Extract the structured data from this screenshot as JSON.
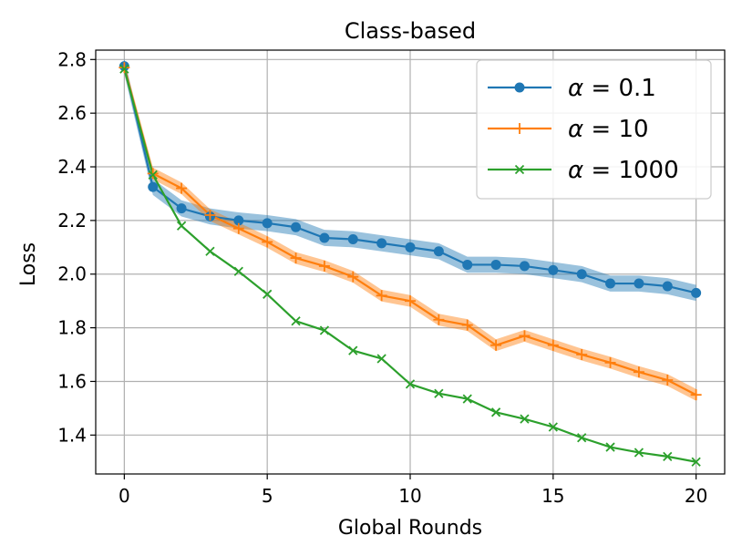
{
  "chart_data": {
    "type": "line",
    "title": "Class-based",
    "xlabel": "Global Rounds",
    "ylabel": "Loss",
    "xlim": [
      -1,
      21
    ],
    "ylim": [
      1.255,
      2.835
    ],
    "xticks": [
      0,
      5,
      10,
      15,
      20
    ],
    "yticks": [
      1.4,
      1.6,
      1.8,
      2.0,
      2.2,
      2.4,
      2.6,
      2.8
    ],
    "xtick_labels": [
      "0",
      "5",
      "10",
      "15",
      "20"
    ],
    "ytick_labels": [
      "1.4",
      "1.6",
      "1.8",
      "2.0",
      "2.2",
      "2.4",
      "2.6",
      "2.8"
    ],
    "grid": true,
    "legend_position": "top-right",
    "x": [
      0,
      1,
      2,
      3,
      4,
      5,
      6,
      7,
      8,
      9,
      10,
      11,
      12,
      13,
      14,
      15,
      16,
      17,
      18,
      19,
      20
    ],
    "series": [
      {
        "name": "α = 0.1",
        "color": "#1f77b4",
        "marker": "circle",
        "values": [
          2.775,
          2.325,
          2.245,
          2.215,
          2.2,
          2.19,
          2.175,
          2.135,
          2.13,
          2.115,
          2.1,
          2.085,
          2.035,
          2.035,
          2.03,
          2.015,
          2.0,
          1.965,
          1.965,
          1.955,
          1.93
        ],
        "band": 0.03
      },
      {
        "name": "α = 10",
        "color": "#ff7f0e",
        "marker": "plus",
        "values": [
          2.77,
          2.375,
          2.32,
          2.22,
          2.17,
          2.12,
          2.06,
          2.03,
          1.99,
          1.92,
          1.9,
          1.83,
          1.81,
          1.735,
          1.77,
          1.735,
          1.7,
          1.67,
          1.635,
          1.605,
          1.55
        ],
        "band": 0.022
      },
      {
        "name": "α = 1000",
        "color": "#2ca02c",
        "marker": "x",
        "values": [
          2.765,
          2.37,
          2.18,
          2.085,
          2.01,
          1.925,
          1.825,
          1.79,
          1.715,
          1.685,
          1.59,
          1.555,
          1.535,
          1.485,
          1.46,
          1.43,
          1.39,
          1.355,
          1.335,
          1.32,
          1.3
        ],
        "band": 0.0
      }
    ],
    "legend": {
      "entries": [
        {
          "prefix": "α",
          "op": " = ",
          "value": "0.1"
        },
        {
          "prefix": "α",
          "op": " = ",
          "value": "10"
        },
        {
          "prefix": "α",
          "op": " = ",
          "value": "1000"
        }
      ]
    }
  }
}
